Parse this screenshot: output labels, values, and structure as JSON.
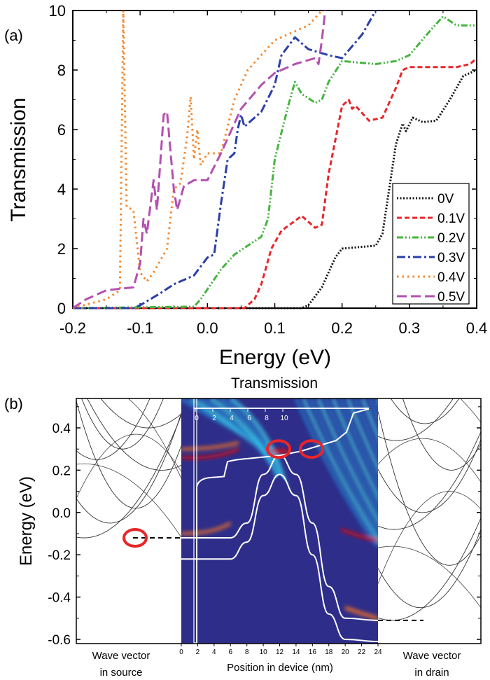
{
  "chart_data": [
    {
      "panel_label": "(a)",
      "type": "line",
      "xlabel": "Energy (eV)",
      "ylabel": "Transmission",
      "xlim": [
        -0.2,
        0.4
      ],
      "ylim": [
        0,
        10
      ],
      "xticks": [
        "-0.2",
        "-0.1",
        "0.0",
        "0.1",
        "0.2",
        "0.3",
        "0.4"
      ],
      "yticks": [
        "0",
        "2",
        "4",
        "6",
        "8",
        "10"
      ],
      "grid": false,
      "legend_position": "bottom-right",
      "series": [
        {
          "name": "0V",
          "color": "#111111",
          "dash": "dot",
          "points": [
            [
              -0.2,
              0
            ],
            [
              0.14,
              0
            ],
            [
              0.15,
              0.1
            ],
            [
              0.17,
              0.7
            ],
            [
              0.19,
              1.7
            ],
            [
              0.2,
              2
            ],
            [
              0.25,
              2.1
            ],
            [
              0.26,
              2.5
            ],
            [
              0.27,
              4
            ],
            [
              0.28,
              5.5
            ],
            [
              0.29,
              6.2
            ],
            [
              0.295,
              5.95
            ],
            [
              0.305,
              6.4
            ],
            [
              0.32,
              6.25
            ],
            [
              0.34,
              6.3
            ],
            [
              0.36,
              7
            ],
            [
              0.38,
              7.8
            ],
            [
              0.4,
              8
            ]
          ]
        },
        {
          "name": "0.1V",
          "color": "#e8262a",
          "dash": "dash",
          "points": [
            [
              -0.2,
              0
            ],
            [
              0.055,
              0
            ],
            [
              0.07,
              0.3
            ],
            [
              0.08,
              0.8
            ],
            [
              0.095,
              2
            ],
            [
              0.11,
              2.6
            ],
            [
              0.14,
              3.1
            ],
            [
              0.16,
              2.7
            ],
            [
              0.17,
              2.8
            ],
            [
              0.18,
              4.5
            ],
            [
              0.2,
              6.8
            ],
            [
              0.21,
              7
            ],
            [
              0.215,
              6.7
            ],
            [
              0.22,
              6.8
            ],
            [
              0.24,
              6.3
            ],
            [
              0.26,
              6.4
            ],
            [
              0.28,
              7.4
            ],
            [
              0.29,
              8
            ],
            [
              0.3,
              8.1
            ],
            [
              0.37,
              8.1
            ],
            [
              0.39,
              8.2
            ],
            [
              0.4,
              8.4
            ]
          ]
        },
        {
          "name": "0.2V",
          "color": "#46b43e",
          "dash": "dashdotdot",
          "points": [
            [
              -0.2,
              0
            ],
            [
              -0.02,
              0.05
            ],
            [
              -0.01,
              0.3
            ],
            [
              0.02,
              1.3
            ],
            [
              0.04,
              1.8
            ],
            [
              0.08,
              2.4
            ],
            [
              0.09,
              3
            ],
            [
              0.1,
              5
            ],
            [
              0.12,
              6.8
            ],
            [
              0.13,
              7.6
            ],
            [
              0.14,
              7.2
            ],
            [
              0.16,
              6.9
            ],
            [
              0.17,
              7
            ],
            [
              0.18,
              7.6
            ],
            [
              0.2,
              8.3
            ],
            [
              0.25,
              8.2
            ],
            [
              0.28,
              8.3
            ],
            [
              0.3,
              8.5
            ],
            [
              0.33,
              9.3
            ],
            [
              0.35,
              9.8
            ],
            [
              0.37,
              9.5
            ],
            [
              0.4,
              9.5
            ]
          ]
        },
        {
          "name": "0.3V",
          "color": "#2b3fa8",
          "dash": "dashdot",
          "points": [
            [
              -0.2,
              0
            ],
            [
              -0.11,
              0
            ],
            [
              -0.1,
              0.1
            ],
            [
              -0.07,
              0.5
            ],
            [
              -0.05,
              0.8
            ],
            [
              -0.02,
              1.1
            ],
            [
              0,
              1.7
            ],
            [
              0.01,
              1.8
            ],
            [
              0.02,
              3.5
            ],
            [
              0.03,
              5
            ],
            [
              0.04,
              5.2
            ],
            [
              0.045,
              6
            ],
            [
              0.05,
              6.5
            ],
            [
              0.055,
              6.1
            ],
            [
              0.08,
              6.6
            ],
            [
              0.1,
              7.5
            ],
            [
              0.11,
              8.5
            ],
            [
              0.13,
              9.1
            ],
            [
              0.15,
              8.7
            ],
            [
              0.18,
              8.5
            ],
            [
              0.2,
              8.4
            ],
            [
              0.23,
              9.2
            ],
            [
              0.25,
              10
            ]
          ]
        },
        {
          "name": "0.4V",
          "color": "#f5862a",
          "dash": "shortdot",
          "points": [
            [
              -0.2,
              0
            ],
            [
              -0.15,
              0.3
            ],
            [
              -0.13,
              0.6
            ],
            [
              -0.125,
              10
            ],
            [
              -0.12,
              3.4
            ],
            [
              -0.11,
              3.3
            ],
            [
              -0.1,
              1.2
            ],
            [
              -0.09,
              0.9
            ],
            [
              -0.08,
              1.2
            ],
            [
              -0.06,
              2
            ],
            [
              -0.05,
              4
            ],
            [
              -0.04,
              4.2
            ],
            [
              -0.03,
              5.8
            ],
            [
              -0.025,
              7.1
            ],
            [
              -0.02,
              5
            ],
            [
              -0.015,
              6
            ],
            [
              -0.01,
              4.8
            ],
            [
              0,
              5.2
            ],
            [
              0.02,
              5.2
            ],
            [
              0.04,
              7
            ],
            [
              0.06,
              8
            ],
            [
              0.1,
              9
            ],
            [
              0.15,
              9.5
            ],
            [
              0.17,
              10
            ]
          ]
        },
        {
          "name": "0.5V",
          "color": "#b350b0",
          "dash": "longdash",
          "points": [
            [
              -0.2,
              0
            ],
            [
              -0.18,
              0.3
            ],
            [
              -0.15,
              0.6
            ],
            [
              -0.11,
              0.7
            ],
            [
              -0.1,
              1.5
            ],
            [
              -0.095,
              3
            ],
            [
              -0.09,
              2.5
            ],
            [
              -0.08,
              4.3
            ],
            [
              -0.075,
              3.3
            ],
            [
              -0.065,
              6.5
            ],
            [
              -0.06,
              6.6
            ],
            [
              -0.05,
              4
            ],
            [
              -0.045,
              3.3
            ],
            [
              -0.035,
              4.1
            ],
            [
              -0.02,
              4.3
            ],
            [
              0,
              4.3
            ],
            [
              0.02,
              5.2
            ],
            [
              0.05,
              6.7
            ],
            [
              0.08,
              7.5
            ],
            [
              0.1,
              7.9
            ],
            [
              0.13,
              8.2
            ],
            [
              0.16,
              8.4
            ],
            [
              0.165,
              8.2
            ],
            [
              0.17,
              9
            ],
            [
              0.175,
              10
            ]
          ]
        }
      ]
    },
    {
      "panel_label": "(b)",
      "type": "heatmap",
      "title": "Transmission",
      "ylabel": "Energy (eV)",
      "ylim": [
        -0.62,
        0.53
      ],
      "yticks": [
        "0.4",
        "0.2",
        "0.0",
        "-0.2",
        "-0.4",
        "-0.6"
      ],
      "xlabel": "Position in device (nm)",
      "xlim": [
        0,
        24
      ],
      "xticks": [
        "0",
        "2",
        "4",
        "6",
        "8",
        "10",
        "12",
        "14",
        "16",
        "18",
        "20",
        "22",
        "24"
      ],
      "inset_xticks": [
        "0",
        "2",
        "4",
        "6",
        "8",
        "10"
      ],
      "left_label": [
        "Wave vector",
        "in source"
      ],
      "right_label": [
        "Wave vector",
        "in drain"
      ],
      "colormap": [
        "#2e2e8a",
        "#1f7fd0",
        "#3fd0e8",
        "#b8e040",
        "#f0d020",
        "#f07020",
        "#d81010"
      ],
      "conduction_band_edge": [
        [
          0,
          -0.12
        ],
        [
          6,
          -0.12
        ],
        [
          8,
          -0.05
        ],
        [
          10,
          0.18
        ],
        [
          12,
          0.27
        ],
        [
          14,
          0.18
        ],
        [
          16,
          -0.05
        ],
        [
          18,
          -0.35
        ],
        [
          20,
          -0.5
        ],
        [
          24,
          -0.51
        ]
      ],
      "valence_band_edge": [
        [
          0,
          -0.22
        ],
        [
          6,
          -0.22
        ],
        [
          8,
          -0.14
        ],
        [
          10,
          0.08
        ],
        [
          12,
          0.18
        ],
        [
          14,
          0.08
        ],
        [
          16,
          -0.2
        ],
        [
          18,
          -0.48
        ],
        [
          20,
          -0.6
        ],
        [
          24,
          -0.61
        ]
      ],
      "source_fermi_marker_eV": -0.12,
      "drain_fermi_marker_eV": -0.51,
      "highlight_circles_eV": [
        -0.12,
        0.3,
        0.3
      ],
      "source_band_minima_eV": [
        -0.12,
        -0.05,
        0.02,
        0.2,
        0.25,
        0.3,
        0.4
      ],
      "drain_band_minima_eV": [
        -0.51,
        -0.45,
        -0.25,
        -0.08,
        0.0,
        0.2,
        0.34,
        0.42
      ]
    }
  ]
}
